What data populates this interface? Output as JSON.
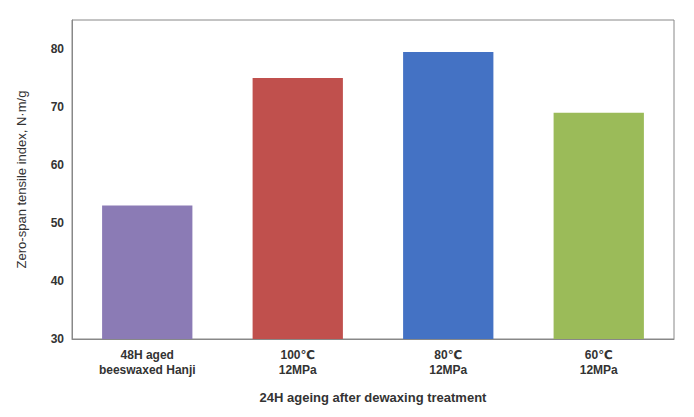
{
  "chart_data": {
    "type": "bar",
    "categories": [
      "48H aged\nbeeswaxed Hanji",
      "100℃\n12MPa",
      "80℃\n12MPa",
      "60℃\n12MPa"
    ],
    "values": [
      53.0,
      75.0,
      79.5,
      69.0
    ],
    "colors": [
      "#8B7BB5",
      "#C0504D",
      "#4472C4",
      "#9BBB59"
    ],
    "xlabel": "24H ageing after dewaxing treatment",
    "ylabel": "Zero-span tensile index, N·m/g",
    "ylim": [
      30,
      85
    ],
    "yticks": [
      30,
      40,
      50,
      60,
      70,
      80
    ],
    "grid": false
  }
}
